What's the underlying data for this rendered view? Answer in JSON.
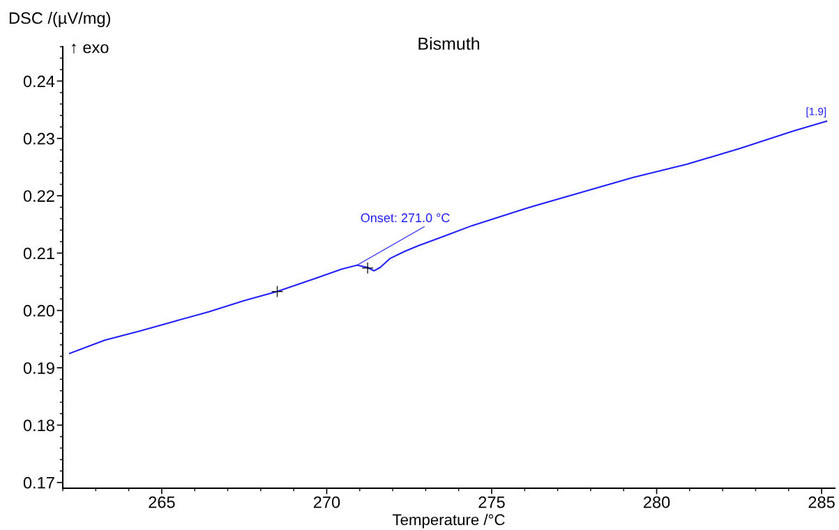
{
  "chart_data": {
    "type": "line",
    "title": "Bismuth",
    "xlabel": "Temperature /°C",
    "ylabel": "DSC /(µV/mg)",
    "xlim": [
      262.0,
      285.4
    ],
    "xticks": [
      265,
      270,
      275,
      280,
      285
    ],
    "ylim": [
      0.169,
      0.246
    ],
    "yticks": [
      {
        "value": 0.17,
        "label": "0.17"
      },
      {
        "value": 0.18,
        "label": "0.18"
      },
      {
        "value": 0.19,
        "label": "0.19"
      },
      {
        "value": 0.2,
        "label": "0.20"
      },
      {
        "value": 0.21,
        "label": "0.21"
      },
      {
        "value": 0.22,
        "label": "0.22"
      },
      {
        "value": 0.23,
        "label": "0.23"
      },
      {
        "value": 0.24,
        "label": "0.24"
      }
    ],
    "grid": false,
    "line_style": "solid",
    "series": [
      {
        "color": "#2020ff",
        "marker": "none",
        "x": [
          262.21,
          263.27,
          264.32,
          265.38,
          266.44,
          267.49,
          268.5,
          269.61,
          270.45,
          270.92,
          271.24,
          271.43,
          271.62,
          271.93,
          272.36,
          272.78,
          273.58,
          274.41,
          276.04,
          277.66,
          279.29,
          280.92,
          282.55,
          284.15,
          285.15
        ],
        "values": [
          0.1925,
          0.1948,
          0.1964,
          0.1981,
          0.1998,
          0.2017,
          0.2033,
          0.2055,
          0.2072,
          0.2079,
          0.2075,
          0.2069,
          0.2075,
          0.2091,
          0.2103,
          0.2113,
          0.213,
          0.2148,
          0.2178,
          0.2205,
          0.2232,
          0.2255,
          0.2283,
          0.2313,
          0.233
        ]
      },
      {
        "type": "scatter",
        "color": "#000000",
        "marker": "cross",
        "x": [
          268.5,
          271.24
        ],
        "values": [
          0.2033,
          0.2074
        ]
      }
    ],
    "annotations": [
      {
        "text": "Onset: 271.0 °C",
        "x": 270.92,
        "y": 0.2079
      },
      {
        "text": "[1.9]",
        "x": 285.15,
        "y": 0.233
      },
      "↑ exo"
    ]
  }
}
